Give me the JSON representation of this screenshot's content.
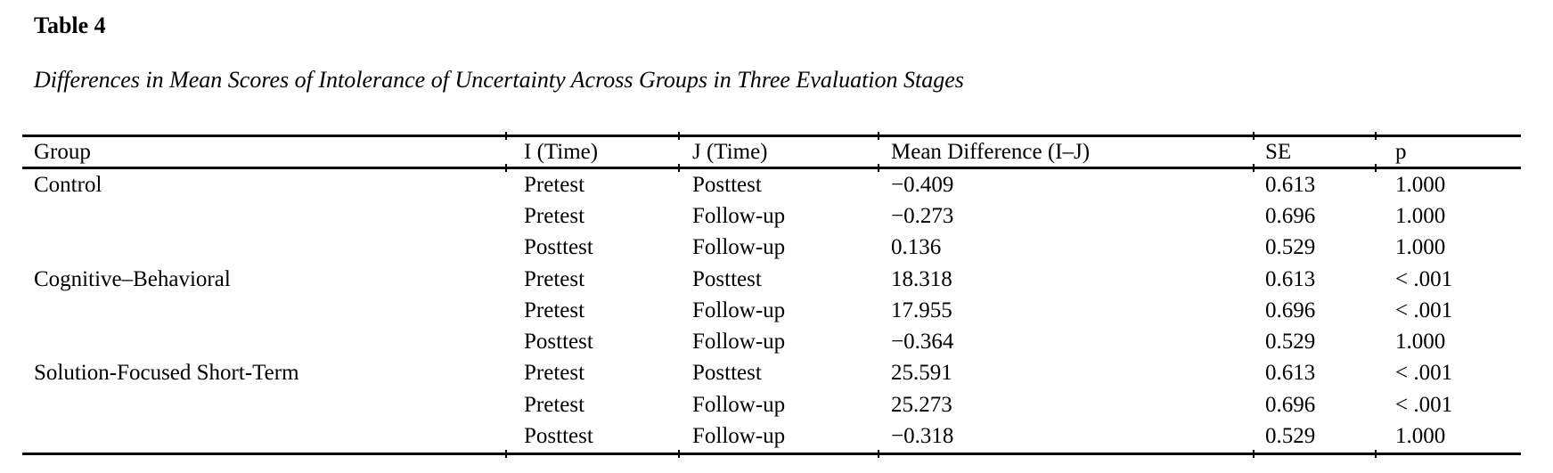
{
  "page": {
    "title": "Table 4",
    "caption": "Differences in Mean Scores of Intolerance of Uncertainty Across Groups in Three Evaluation Stages"
  },
  "table": {
    "columns": [
      "Group",
      "I (Time)",
      "J (Time)",
      "Mean Difference (I–J)",
      "SE",
      "p"
    ],
    "rows": [
      [
        "Control",
        "Pretest",
        "Posttest",
        "−0.409",
        "0.613",
        "1.000"
      ],
      [
        "",
        "Pretest",
        "Follow-up",
        "−0.273",
        "0.696",
        "1.000"
      ],
      [
        "",
        "Posttest",
        "Follow-up",
        "0.136",
        "0.529",
        "1.000"
      ],
      [
        "Cognitive–Behavioral",
        "Pretest",
        "Posttest",
        "18.318",
        "0.613",
        "< .001"
      ],
      [
        "",
        "Pretest",
        "Follow-up",
        "17.955",
        "0.696",
        "< .001"
      ],
      [
        "",
        "Posttest",
        "Follow-up",
        "−0.364",
        "0.529",
        "1.000"
      ],
      [
        "Solution-Focused Short-Term",
        "Pretest",
        "Posttest",
        "25.591",
        "0.613",
        "< .001"
      ],
      [
        "",
        "Pretest",
        "Follow-up",
        "25.273",
        "0.696",
        "< .001"
      ],
      [
        "",
        "Posttest",
        "Follow-up",
        "−0.318",
        "0.529",
        "1.000"
      ]
    ],
    "text_color": "#000000",
    "background_color": "#ffffff"
  }
}
